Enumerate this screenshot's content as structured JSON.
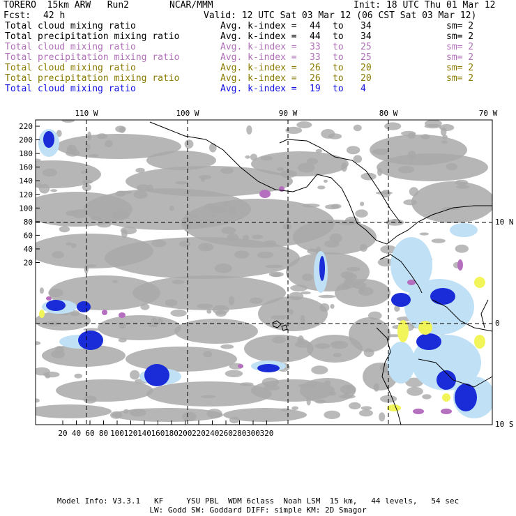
{
  "header": {
    "model": "TORERO  15km ARW   Run2",
    "org": "NCAR/MMM",
    "init": "Init: 18 UTC Thu 01 Mar 12",
    "fcst_label": "Fcst:",
    "fcst_value": "42 h",
    "valid": "Valid: 12 UTC Sat 03 Mar 12 (06 CST Sat 03 Mar 12)"
  },
  "legend": [
    {
      "field": "Total cloud mixing ratio",
      "index": "Avg. k-index =",
      "from": "44",
      "to_word": "to",
      "to": "34",
      "sm": "sm= 2",
      "color": "#000000"
    },
    {
      "field": "Total precipitation mixing ratio",
      "index": "Avg. k-index =",
      "from": "44",
      "to_word": "to",
      "to": "34",
      "sm": "sm= 2",
      "color": "#000000"
    },
    {
      "field": "Total cloud mixing ratio",
      "index": "Avg. k-index =",
      "from": "33",
      "to_word": "to",
      "to": "25",
      "sm": "sm= 2",
      "color": "#b070b8"
    },
    {
      "field": "Total precipitation mixing ratio",
      "index": "Avg. k-index =",
      "from": "33",
      "to_word": "to",
      "to": "25",
      "sm": "sm= 2",
      "color": "#b070b8"
    },
    {
      "field": "Total cloud mixing ratio",
      "index": "Avg. k-index =",
      "from": "26",
      "to_word": "to",
      "to": "20",
      "sm": "sm= 2",
      "color": "#8a7a00"
    },
    {
      "field": "Total precipitation mixing ratio",
      "index": "Avg. k-index =",
      "from": "26",
      "to_word": "to",
      "to": "20",
      "sm": "sm= 2",
      "color": "#8a7a00"
    },
    {
      "field": "Total cloud mixing ratio",
      "index": "Avg. k-index =",
      "from": "19",
      "to_word": "to",
      "to": "4",
      "sm": "",
      "color": "#1010e0"
    }
  ],
  "map": {
    "lon_labels": [
      "110 W",
      "100 W",
      "90 W",
      "80 W",
      "70 W"
    ],
    "lat_labels": [
      "10 N",
      "0",
      "10 S"
    ],
    "y_ticks": [
      "220",
      "200",
      "180",
      "160",
      "140",
      "120",
      "100",
      "80",
      "60",
      "40",
      "20"
    ],
    "x_ticks": [
      "20",
      "40",
      "60",
      "80",
      "100",
      "120",
      "140",
      "160",
      "180",
      "200",
      "220",
      "240",
      "260",
      "280",
      "300",
      "320"
    ]
  },
  "footer": {
    "line1": "Model Info: V3.3.1   KF     YSU PBL  WDM 6class  Noah LSM  15 km,   44 levels,   54 sec",
    "line2": "LW: Godd SW: Goddard DIFF: simple KM: 2D Smagor"
  }
}
